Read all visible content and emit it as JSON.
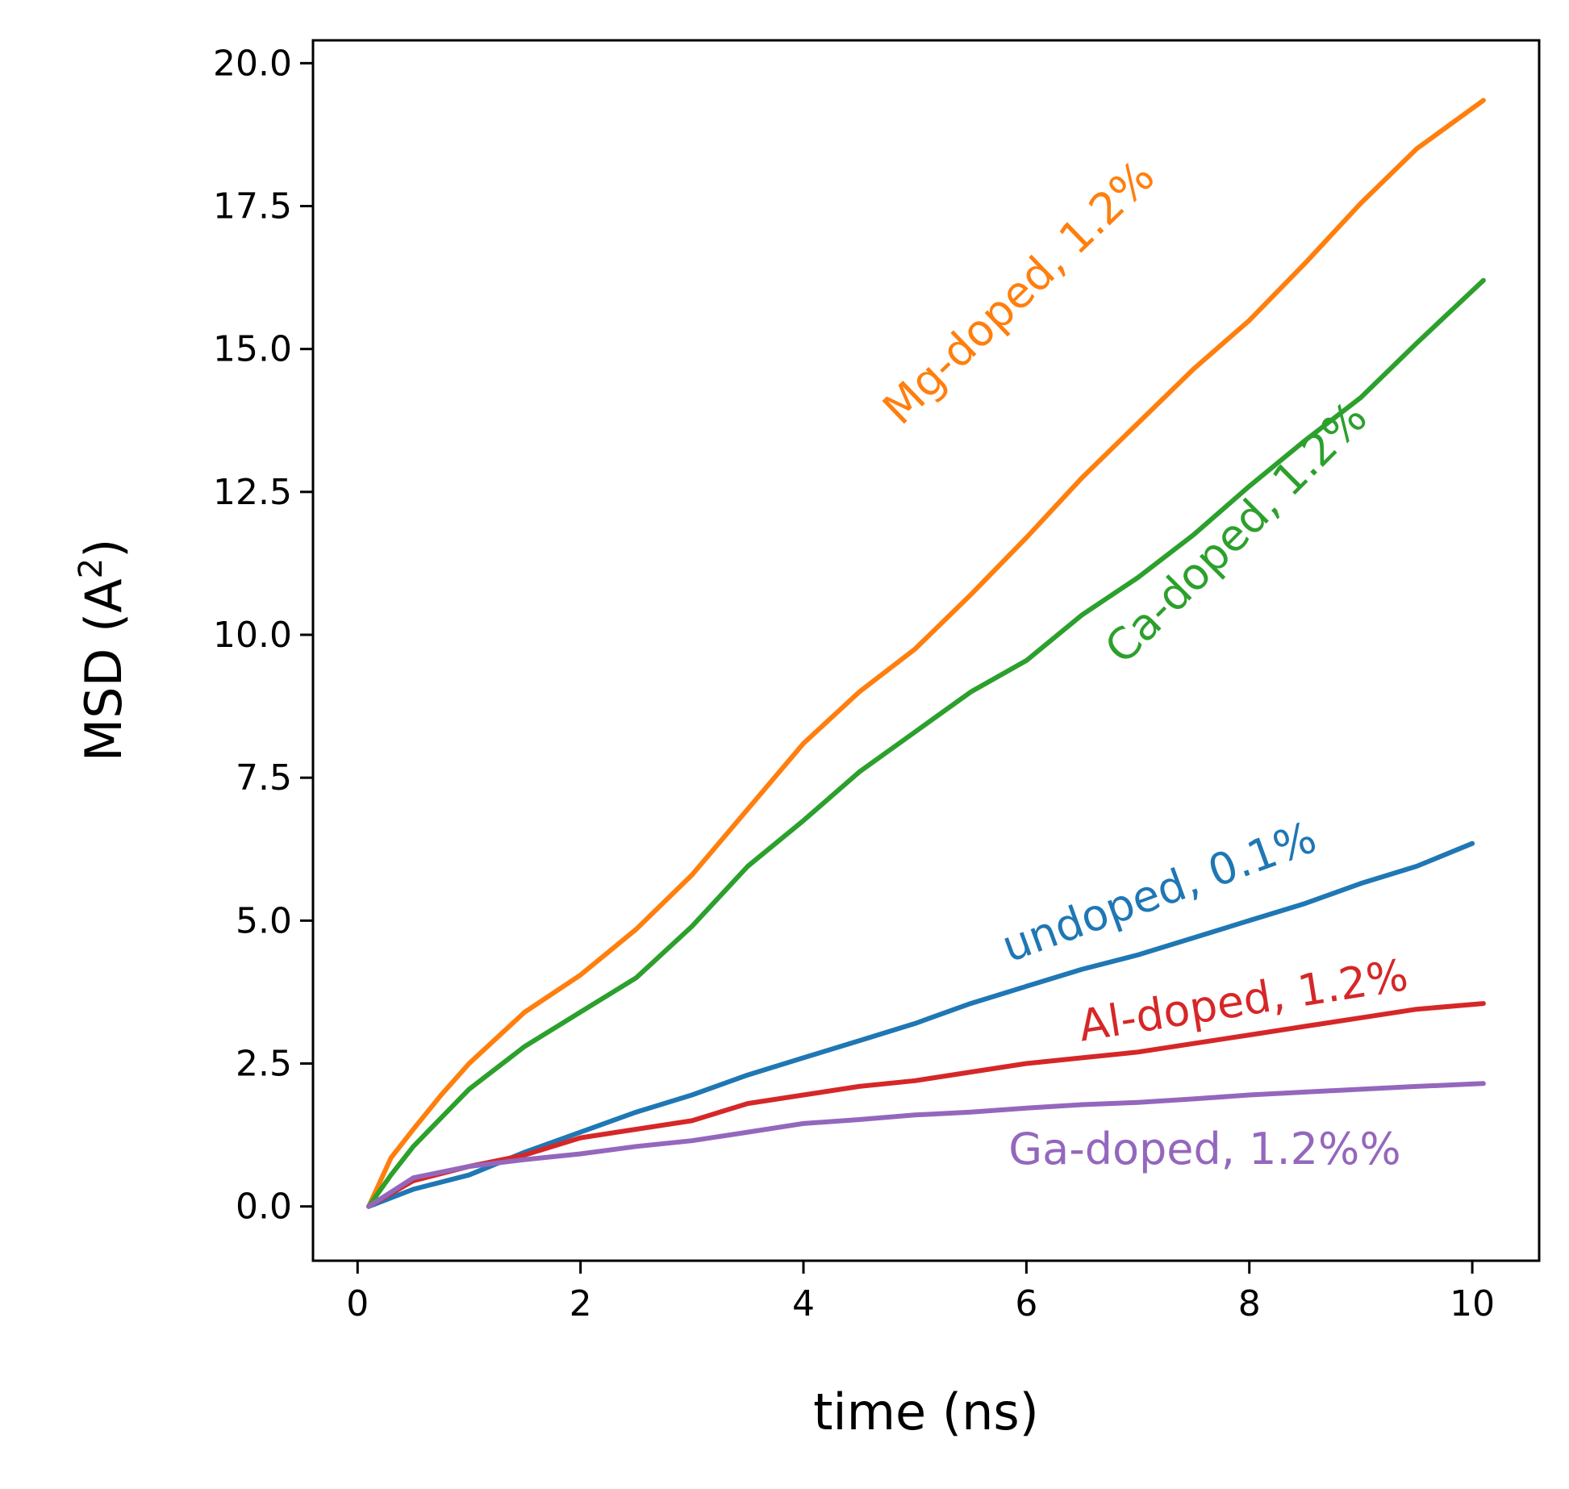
{
  "chart_data": {
    "type": "line",
    "title": "",
    "xlabel": "time (ns)",
    "ylabel_main": "MSD (A",
    "ylabel_sup": "2",
    "ylabel_close": ")",
    "xlim": [
      -0.4,
      10.6
    ],
    "ylim": [
      -0.95,
      20.4
    ],
    "xticks": [
      0,
      2,
      4,
      6,
      8,
      10
    ],
    "xtick_labels": [
      "0",
      "2",
      "4",
      "6",
      "8",
      "10"
    ],
    "yticks": [
      0,
      2.5,
      5,
      7.5,
      10,
      12.5,
      15,
      17.5,
      20
    ],
    "ytick_labels": [
      "0.0",
      "2.5",
      "5.0",
      "7.5",
      "10.0",
      "12.5",
      "15.0",
      "17.5",
      "20.0"
    ],
    "grid": false,
    "legend": "none",
    "series": [
      {
        "name": "Mg-doped, 1.2%",
        "color": "#ff7f0e",
        "label_at": [
          5.95,
          15.95
        ],
        "label_angle": 44,
        "points": [
          [
            0.1,
            0.0
          ],
          [
            0.3,
            0.85
          ],
          [
            0.5,
            1.35
          ],
          [
            0.75,
            1.95
          ],
          [
            1.0,
            2.5
          ],
          [
            1.5,
            3.4
          ],
          [
            2.0,
            4.05
          ],
          [
            2.5,
            4.85
          ],
          [
            3.0,
            5.8
          ],
          [
            3.5,
            6.95
          ],
          [
            4.0,
            8.1
          ],
          [
            4.5,
            9.0
          ],
          [
            5.0,
            9.75
          ],
          [
            5.5,
            10.7
          ],
          [
            6.0,
            11.7
          ],
          [
            6.5,
            12.75
          ],
          [
            7.0,
            13.7
          ],
          [
            7.5,
            14.65
          ],
          [
            8.0,
            15.5
          ],
          [
            8.5,
            16.5
          ],
          [
            9.0,
            17.55
          ],
          [
            9.5,
            18.5
          ],
          [
            10.1,
            19.35
          ]
        ]
      },
      {
        "name": "Ca-doped, 1.2%",
        "color": "#2ca02c",
        "label_at": [
          7.9,
          11.75
        ],
        "label_angle": 45,
        "points": [
          [
            0.1,
            0.0
          ],
          [
            0.3,
            0.55
          ],
          [
            0.5,
            1.05
          ],
          [
            0.75,
            1.55
          ],
          [
            1.0,
            2.05
          ],
          [
            1.5,
            2.8
          ],
          [
            2.0,
            3.4
          ],
          [
            2.5,
            4.0
          ],
          [
            3.0,
            4.9
          ],
          [
            3.5,
            5.95
          ],
          [
            4.0,
            6.75
          ],
          [
            4.5,
            7.6
          ],
          [
            5.0,
            8.3
          ],
          [
            5.5,
            9.0
          ],
          [
            6.0,
            9.55
          ],
          [
            6.5,
            10.35
          ],
          [
            7.0,
            11.0
          ],
          [
            7.5,
            11.75
          ],
          [
            8.0,
            12.6
          ],
          [
            8.5,
            13.4
          ],
          [
            9.0,
            14.15
          ],
          [
            9.5,
            15.1
          ],
          [
            10.1,
            16.2
          ]
        ]
      },
      {
        "name": "undoped, 0.1%",
        "color": "#1f77b4",
        "label_at": [
          7.2,
          5.45
        ],
        "label_angle": 20,
        "points": [
          [
            0.1,
            0.0
          ],
          [
            0.5,
            0.3
          ],
          [
            1.0,
            0.55
          ],
          [
            1.5,
            0.95
          ],
          [
            2.0,
            1.3
          ],
          [
            2.5,
            1.65
          ],
          [
            3.0,
            1.95
          ],
          [
            3.5,
            2.3
          ],
          [
            4.0,
            2.6
          ],
          [
            4.5,
            2.9
          ],
          [
            5.0,
            3.2
          ],
          [
            5.5,
            3.55
          ],
          [
            6.0,
            3.85
          ],
          [
            6.5,
            4.15
          ],
          [
            7.0,
            4.4
          ],
          [
            7.5,
            4.7
          ],
          [
            8.0,
            5.0
          ],
          [
            8.5,
            5.3
          ],
          [
            9.0,
            5.65
          ],
          [
            9.5,
            5.95
          ],
          [
            10.0,
            6.35
          ]
        ]
      },
      {
        "name": "Al-doped, 1.2%",
        "color": "#d62728",
        "label_at": [
          7.95,
          3.55
        ],
        "label_angle": 9,
        "points": [
          [
            0.1,
            0.0
          ],
          [
            0.5,
            0.45
          ],
          [
            1.0,
            0.7
          ],
          [
            1.5,
            0.9
          ],
          [
            2.0,
            1.2
          ],
          [
            2.5,
            1.35
          ],
          [
            3.0,
            1.5
          ],
          [
            3.5,
            1.8
          ],
          [
            4.0,
            1.95
          ],
          [
            4.5,
            2.1
          ],
          [
            5.0,
            2.2
          ],
          [
            5.5,
            2.35
          ],
          [
            6.0,
            2.5
          ],
          [
            6.5,
            2.6
          ],
          [
            7.0,
            2.7
          ],
          [
            7.5,
            2.85
          ],
          [
            8.0,
            3.0
          ],
          [
            8.5,
            3.15
          ],
          [
            9.0,
            3.3
          ],
          [
            9.5,
            3.45
          ],
          [
            10.1,
            3.55
          ]
        ]
      },
      {
        "name": "Ga-doped, 1.2%%",
        "color": "#9467bd",
        "label_at": [
          7.6,
          0.95
        ],
        "label_angle": 0,
        "points": [
          [
            0.1,
            0.0
          ],
          [
            0.5,
            0.5
          ],
          [
            1.0,
            0.7
          ],
          [
            1.5,
            0.82
          ],
          [
            2.0,
            0.92
          ],
          [
            2.5,
            1.05
          ],
          [
            3.0,
            1.15
          ],
          [
            3.5,
            1.3
          ],
          [
            4.0,
            1.45
          ],
          [
            4.5,
            1.52
          ],
          [
            5.0,
            1.6
          ],
          [
            5.5,
            1.65
          ],
          [
            6.0,
            1.72
          ],
          [
            6.5,
            1.78
          ],
          [
            7.0,
            1.82
          ],
          [
            7.5,
            1.88
          ],
          [
            8.0,
            1.95
          ],
          [
            8.5,
            2.0
          ],
          [
            9.0,
            2.05
          ],
          [
            9.5,
            2.1
          ],
          [
            10.1,
            2.15
          ]
        ]
      }
    ]
  }
}
